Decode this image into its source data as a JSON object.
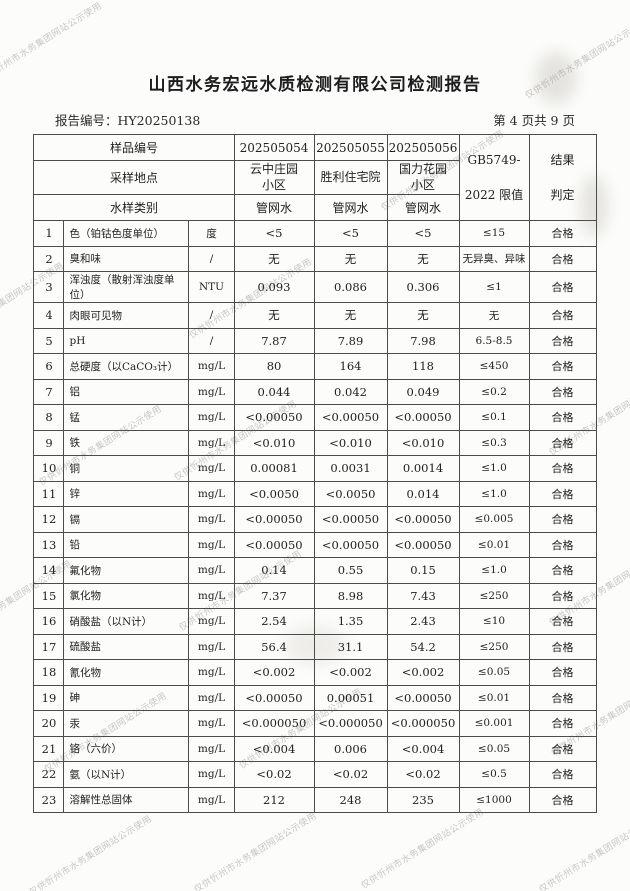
{
  "page": {
    "title": "山西水务宏远水质检测有限公司检测报告",
    "report_no_label": "报告编号：",
    "report_no": "HY20250138",
    "page_info": "第 4 页共 9 页",
    "watermark": "仅供忻州市水务集团网站公示使用"
  },
  "table": {
    "header": {
      "sample_no_label": "样品编号",
      "sample_nos": [
        "202505054",
        "202505055",
        "202505056"
      ],
      "location_label": "采样地点",
      "locations": [
        "云中庄园\n小区",
        "胜利住宅院",
        "国力花园\n小区"
      ],
      "type_label": "水样类别",
      "types": [
        "管网水",
        "管网水",
        "管网水"
      ],
      "limit_label": "GB5749-\n2022 限值",
      "result_label": "结果\n判定"
    },
    "rows": [
      {
        "no": "1",
        "name": "色（铂钴色度单位）",
        "unit": "度",
        "v1": "<5",
        "v2": "<5",
        "v3": "<5",
        "limit": "≤15",
        "result": "合格"
      },
      {
        "no": "2",
        "name": "臭和味",
        "unit": "/",
        "v1": "无",
        "v2": "无",
        "v3": "无",
        "limit": "无异臭、异味",
        "result": "合格"
      },
      {
        "no": "3",
        "name": "浑浊度（散射浑浊度单位）",
        "unit": "NTU",
        "v1": "0.093",
        "v2": "0.086",
        "v3": "0.306",
        "limit": "≤1",
        "result": "合格"
      },
      {
        "no": "4",
        "name": "肉眼可见物",
        "unit": "/",
        "v1": "无",
        "v2": "无",
        "v3": "无",
        "limit": "无",
        "result": "合格"
      },
      {
        "no": "5",
        "name": "pH",
        "unit": "/",
        "v1": "7.87",
        "v2": "7.89",
        "v3": "7.98",
        "limit": "6.5-8.5",
        "result": "合格"
      },
      {
        "no": "6",
        "name": "总硬度（以CaCO₃计）",
        "unit": "mg/L",
        "v1": "80",
        "v2": "164",
        "v3": "118",
        "limit": "≤450",
        "result": "合格"
      },
      {
        "no": "7",
        "name": "铝",
        "unit": "mg/L",
        "v1": "0.044",
        "v2": "0.042",
        "v3": "0.049",
        "limit": "≤0.2",
        "result": "合格"
      },
      {
        "no": "8",
        "name": "锰",
        "unit": "mg/L",
        "v1": "<0.00050",
        "v2": "<0.00050",
        "v3": "<0.00050",
        "limit": "≤0.1",
        "result": "合格"
      },
      {
        "no": "9",
        "name": "铁",
        "unit": "mg/L",
        "v1": "<0.010",
        "v2": "<0.010",
        "v3": "<0.010",
        "limit": "≤0.3",
        "result": "合格"
      },
      {
        "no": "10",
        "name": "铜",
        "unit": "mg/L",
        "v1": "0.00081",
        "v2": "0.0031",
        "v3": "0.0014",
        "limit": "≤1.0",
        "result": "合格"
      },
      {
        "no": "11",
        "name": "锌",
        "unit": "mg/L",
        "v1": "<0.0050",
        "v2": "<0.0050",
        "v3": "0.014",
        "limit": "≤1.0",
        "result": "合格"
      },
      {
        "no": "12",
        "name": "镉",
        "unit": "mg/L",
        "v1": "<0.00050",
        "v2": "<0.00050",
        "v3": "<0.00050",
        "limit": "≤0.005",
        "result": "合格"
      },
      {
        "no": "13",
        "name": "铅",
        "unit": "mg/L",
        "v1": "<0.00050",
        "v2": "<0.00050",
        "v3": "<0.00050",
        "limit": "≤0.01",
        "result": "合格"
      },
      {
        "no": "14",
        "name": "氟化物",
        "unit": "mg/L",
        "v1": "0.14",
        "v2": "0.55",
        "v3": "0.15",
        "limit": "≤1.0",
        "result": "合格"
      },
      {
        "no": "15",
        "name": "氯化物",
        "unit": "mg/L",
        "v1": "7.37",
        "v2": "8.98",
        "v3": "7.43",
        "limit": "≤250",
        "result": "合格"
      },
      {
        "no": "16",
        "name": "硝酸盐（以N计）",
        "unit": "mg/L",
        "v1": "2.54",
        "v2": "1.35",
        "v3": "2.43",
        "limit": "≤10",
        "result": "合格"
      },
      {
        "no": "17",
        "name": "硫酸盐",
        "unit": "mg/L",
        "v1": "56.4",
        "v2": "31.1",
        "v3": "54.2",
        "limit": "≤250",
        "result": "合格"
      },
      {
        "no": "18",
        "name": "氰化物",
        "unit": "mg/L",
        "v1": "<0.002",
        "v2": "<0.002",
        "v3": "<0.002",
        "limit": "≤0.05",
        "result": "合格"
      },
      {
        "no": "19",
        "name": "砷",
        "unit": "mg/L",
        "v1": "<0.00050",
        "v2": "0.00051",
        "v3": "<0.00050",
        "limit": "≤0.01",
        "result": "合格"
      },
      {
        "no": "20",
        "name": "汞",
        "unit": "mg/L",
        "v1": "<0.000050",
        "v2": "<0.000050",
        "v3": "<0.000050",
        "limit": "≤0.001",
        "result": "合格"
      },
      {
        "no": "21",
        "name": "铬（六价）",
        "unit": "mg/L",
        "v1": "<0.004",
        "v2": "0.006",
        "v3": "<0.004",
        "limit": "≤0.05",
        "result": "合格"
      },
      {
        "no": "22",
        "name": "氨（以N计）",
        "unit": "mg/L",
        "v1": "<0.02",
        "v2": "<0.02",
        "v3": "<0.02",
        "limit": "≤0.5",
        "result": "合格"
      },
      {
        "no": "23",
        "name": "溶解性总固体",
        "unit": "mg/L",
        "v1": "212",
        "v2": "248",
        "v3": "235",
        "limit": "≤1000",
        "result": "合格"
      }
    ]
  }
}
